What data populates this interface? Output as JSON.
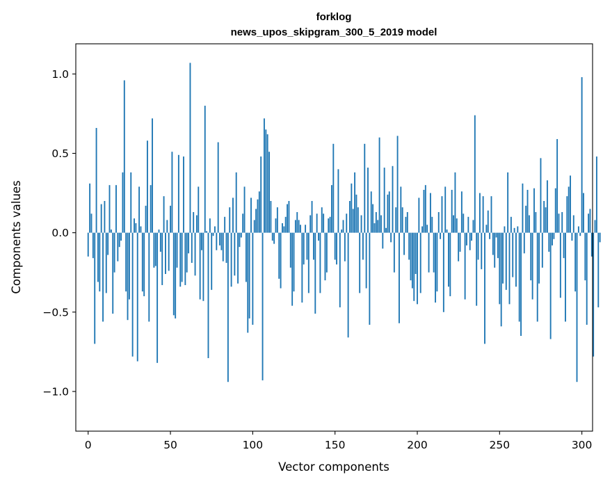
{
  "chart_data": {
    "type": "bar",
    "title": [
      "forklog",
      "news_upos_skipgram_300_5_2019 model"
    ],
    "xlabel": "Vector components",
    "ylabel": "Components values",
    "xlim": [
      -7.5,
      306.5
    ],
    "ylim": [
      -1.25,
      1.19
    ],
    "xticks": [
      0,
      50,
      100,
      150,
      200,
      250,
      300
    ],
    "xtick_labels": [
      "0",
      "50",
      "100",
      "150",
      "200",
      "250",
      "300"
    ],
    "yticks": [
      -1.0,
      -0.5,
      0.0,
      0.5,
      1.0
    ],
    "ytick_labels": [
      "−1.0",
      "−0.5",
      "0.0",
      "0.5",
      "1.0"
    ],
    "grid": false,
    "color": "#1f77b4",
    "values": [
      -0.15,
      0.31,
      0.12,
      -0.16,
      -0.7,
      0.66,
      -0.31,
      -0.37,
      0.18,
      -0.56,
      0.2,
      -0.38,
      -0.14,
      0.3,
      0.02,
      -0.51,
      -0.25,
      0.3,
      -0.18,
      -0.09,
      -0.05,
      0.38,
      0.96,
      -0.37,
      -0.55,
      -0.42,
      0.38,
      -0.78,
      0.09,
      0.06,
      -0.81,
      0.29,
      0.04,
      -0.37,
      -0.4,
      0.17,
      0.58,
      -0.56,
      0.3,
      0.72,
      -0.22,
      -0.21,
      -0.82,
      0.02,
      -0.12,
      -0.33,
      0.23,
      -0.26,
      0.08,
      -0.24,
      0.17,
      0.51,
      -0.52,
      -0.54,
      -0.22,
      0.49,
      -0.34,
      -0.31,
      0.48,
      -0.33,
      -0.25,
      -0.13,
      1.07,
      -0.19,
      0.13,
      -0.27,
      0.11,
      0.29,
      -0.42,
      -0.11,
      -0.43,
      0.8,
      0.01,
      -0.79,
      0.09,
      -0.36,
      -0.02,
      0.04,
      -0.11,
      0.57,
      -0.08,
      -0.11,
      -0.18,
      0.1,
      -0.19,
      -0.94,
      0.16,
      -0.34,
      0.22,
      -0.27,
      0.38,
      -0.32,
      -0.09,
      -0.03,
      0.12,
      0.29,
      -0.31,
      -0.63,
      -0.54,
      0.22,
      -0.58,
      0.08,
      0.15,
      0.21,
      0.26,
      0.48,
      -0.93,
      0.72,
      0.65,
      0.62,
      0.51,
      0.2,
      -0.05,
      -0.07,
      0.09,
      0.16,
      -0.29,
      -0.35,
      0.06,
      0.04,
      0.1,
      0.18,
      0.2,
      -0.22,
      -0.46,
      -0.37,
      0.08,
      0.13,
      0.08,
      0.05,
      -0.44,
      -0.2,
      0.05,
      -0.17,
      -0.38,
      0.11,
      0.2,
      -0.17,
      -0.51,
      0.12,
      -0.05,
      -0.38,
      0.16,
      0.12,
      -0.3,
      -0.25,
      0.09,
      0.1,
      0.3,
      0.56,
      -0.17,
      -0.2,
      0.4,
      -0.47,
      0.02,
      0.08,
      -0.18,
      0.12,
      -0.66,
      0.2,
      0.31,
      0.15,
      0.38,
      0.24,
      0.16,
      -0.38,
      0.11,
      -0.17,
      0.56,
      -0.35,
      0.41,
      -0.58,
      0.26,
      0.18,
      0.06,
      0.13,
      0.08,
      0.6,
      0.11,
      -0.1,
      0.41,
      0.03,
      0.24,
      0.26,
      -0.06,
      0.42,
      -0.25,
      0.16,
      0.61,
      -0.57,
      0.29,
      0.16,
      -0.14,
      0.1,
      0.13,
      -0.17,
      -0.3,
      -0.35,
      -0.43,
      -0.26,
      -0.45,
      0.22,
      -0.38,
      0.04,
      0.27,
      0.3,
      0.05,
      -0.25,
      0.25,
      0.1,
      -0.25,
      -0.44,
      -0.37,
      0.13,
      -0.04,
      0.23,
      -0.5,
      0.29,
      0.02,
      -0.34,
      -0.4,
      0.27,
      0.11,
      0.38,
      0.09,
      -0.18,
      -0.12,
      0.26,
      0.12,
      -0.42,
      -0.08,
      0.1,
      -0.11,
      -0.05,
      0.08,
      0.74,
      -0.46,
      -0.17,
      0.25,
      -0.23,
      0.23,
      -0.7,
      0.05,
      0.14,
      -0.04,
      0.23,
      -0.14,
      -0.22,
      -0.03,
      -0.16,
      -0.45,
      -0.59,
      -0.32,
      0.04,
      -0.36,
      0.38,
      -0.45,
      0.1,
      -0.28,
      0.03,
      -0.34,
      0.04,
      -0.56,
      -0.65,
      0.31,
      -0.13,
      0.17,
      0.27,
      0.11,
      -0.3,
      -0.42,
      0.28,
      0.13,
      -0.56,
      -0.32,
      0.47,
      -0.22,
      0.2,
      0.16,
      0.33,
      -0.12,
      -0.67,
      -0.08,
      -0.04,
      0.28,
      0.59,
      0.12,
      -0.41,
      0.13,
      -0.16,
      -0.56,
      0.23,
      0.29,
      0.36,
      -0.05,
      0.11,
      -0.37,
      -0.94,
      0.04,
      -0.02,
      0.98,
      0.25,
      -0.3,
      -0.58,
      0.12,
      0.15,
      -0.15,
      -0.78,
      0.08,
      0.48,
      -0.47,
      -0.06
    ]
  }
}
